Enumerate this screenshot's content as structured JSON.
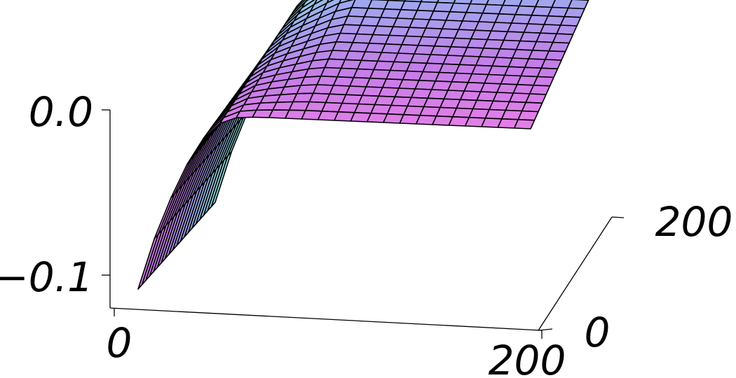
{
  "chart_data": {
    "type": "surface",
    "title": "",
    "x_axis": {
      "label": "",
      "range": [
        0,
        200
      ],
      "ticks": [
        {
          "value": 0,
          "label": "0"
        },
        {
          "value": 200,
          "label": "200"
        }
      ]
    },
    "y_axis": {
      "label": "",
      "range": [
        0,
        200
      ],
      "ticks": [
        {
          "value": 0,
          "label": "0"
        },
        {
          "value": 200,
          "label": "200"
        }
      ]
    },
    "z_axis": {
      "label": "",
      "range": [
        -0.12,
        0.0
      ],
      "ticks": [
        {
          "value": 0.0,
          "label": "0.0"
        },
        {
          "value": -0.1,
          "label": "-0.1"
        }
      ]
    },
    "surface": {
      "description": "z rises steeply from about -0.115 at x=0 toward a plateau near 0.0; plateau tilts slightly upward with y",
      "x_samples": [
        0,
        10,
        20,
        30,
        40,
        50,
        60,
        80,
        100,
        120,
        140,
        160,
        180,
        200
      ],
      "z_profile_at_y0": [
        -0.115,
        -0.075,
        -0.045,
        -0.02,
        -0.006,
        -0.001,
        0.0,
        0.0,
        0.0,
        0.0,
        0.0,
        0.0,
        0.0,
        0.0
      ],
      "z_tilt_at_y200": 0.055
    },
    "grid": false,
    "legend": "none",
    "colormap": [
      "#8fe6dc",
      "#9fa8ee",
      "#c47ee8",
      "#e67ee8"
    ]
  }
}
